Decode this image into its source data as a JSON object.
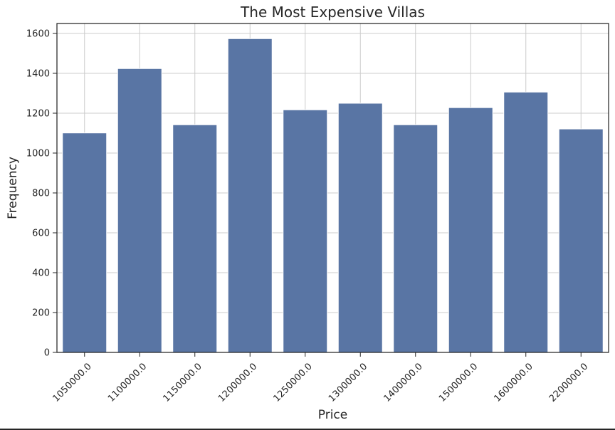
{
  "chart_data": {
    "type": "bar",
    "title": "The Most Expensive Villas",
    "xlabel": "Price",
    "ylabel": "Frequency",
    "categories": [
      "1050000.0",
      "1100000.0",
      "1150000.0",
      "1200000.0",
      "1250000.0",
      "1300000.0",
      "1400000.0",
      "1500000.0",
      "1600000.0",
      "2200000.0"
    ],
    "values": [
      1101,
      1424,
      1142,
      1574,
      1217,
      1250,
      1142,
      1228,
      1306,
      1121
    ],
    "ylim": [
      0,
      1650
    ],
    "yticks": [
      0,
      200,
      400,
      600,
      800,
      1000,
      1200,
      1400,
      1600
    ],
    "grid": true,
    "bar_color": "#5975a4",
    "x_tick_rotation": -45
  }
}
